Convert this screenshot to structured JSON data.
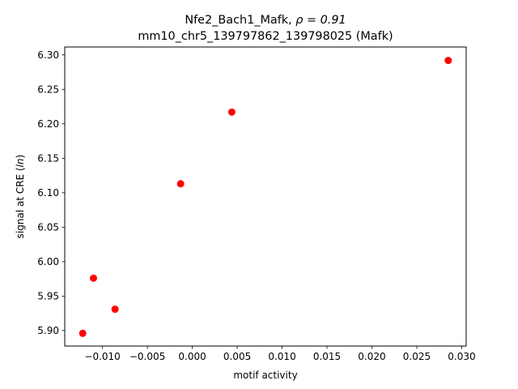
{
  "chart_data": {
    "type": "scatter",
    "title_line1": "Nfe2_Bach1_Mafk, ",
    "title_rho": "ρ = 0.91",
    "title_line2": "mm10_chr5_139797862_139798025 (Mafk)",
    "xlabel": "motif activity",
    "ylabel_prefix": "signal at CRE (",
    "ylabel_italic": "ln",
    "ylabel_suffix": ")",
    "xlim": [
      -0.0142,
      0.0305
    ],
    "ylim": [
      5.8775,
      6.3115
    ],
    "xticks": [
      -0.01,
      -0.005,
      0.0,
      0.005,
      0.01,
      0.015,
      0.02,
      0.025,
      0.03
    ],
    "xtick_labels": [
      "−0.010",
      "−0.005",
      "0.000",
      "0.005",
      "0.010",
      "0.015",
      "0.020",
      "0.025",
      "0.030"
    ],
    "yticks": [
      5.9,
      5.95,
      6.0,
      6.05,
      6.1,
      6.15,
      6.2,
      6.25,
      6.3
    ],
    "ytick_labels": [
      "5.90",
      "5.95",
      "6.00",
      "6.05",
      "6.10",
      "6.15",
      "6.20",
      "6.25",
      "6.30"
    ],
    "grid": false,
    "point_color": "#ff0000",
    "points": [
      {
        "x": -0.0122,
        "y": 5.896
      },
      {
        "x": -0.011,
        "y": 5.976
      },
      {
        "x": -0.0086,
        "y": 5.931
      },
      {
        "x": -0.0013,
        "y": 6.113
      },
      {
        "x": 0.0044,
        "y": 6.217
      },
      {
        "x": 0.0285,
        "y": 6.292
      }
    ]
  }
}
